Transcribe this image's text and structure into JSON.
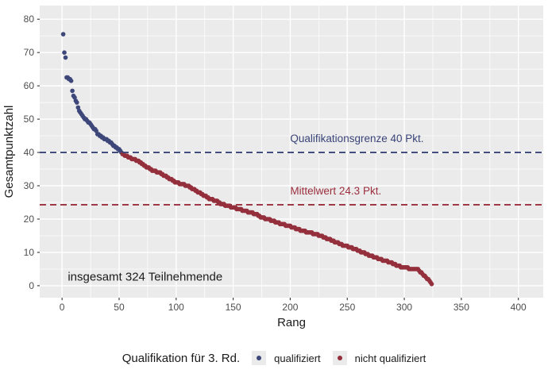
{
  "chart_data": {
    "type": "scatter",
    "title": "",
    "xlabel": "Rang",
    "ylabel": "Gesamtpunktzahl",
    "x_ticks": [
      0,
      50,
      100,
      150,
      200,
      250,
      300,
      350,
      400
    ],
    "y_ticks": [
      0,
      10,
      20,
      30,
      40,
      50,
      60,
      70,
      80
    ],
    "xlim": [
      -19.6,
      421.8
    ],
    "ylim": [
      -3.6,
      84.1
    ],
    "grid": {
      "major": true,
      "minor": true
    },
    "panel_color": "#ebebeb",
    "grid_color": "#ffffff",
    "axis_text_color": "#4d4d4d",
    "axis_title_color": "#1a1a1a",
    "tick_color": "#333333",
    "point_radius": 2.8,
    "n_points": 324,
    "threshold": 40,
    "mean": 24.3,
    "annotation": {
      "text": "insgesamt 324 Teilnehmende",
      "x": 5,
      "y": 1.5,
      "color": "#1a1a1a",
      "font_size": 15
    },
    "hlines": [
      {
        "y": 40,
        "label": "Qualifikationsgrenze 40 Pkt.",
        "color": "#3a4478",
        "label_x": 200
      },
      {
        "y": 24.3,
        "label": "Mittelwert 24.3 Pkt.",
        "color": "#9c2f3e",
        "label_x": 200
      }
    ],
    "series": [
      {
        "name": "qualifiziert",
        "color": "#3d4779",
        "condition": "score >= 40"
      },
      {
        "name": "nicht qualifiziert",
        "color": "#942f3c",
        "condition": "score < 40"
      }
    ],
    "points_rank_score_anchors": [
      [
        1,
        75.5
      ],
      [
        2,
        70
      ],
      [
        3,
        68.5
      ],
      [
        4,
        62.5
      ],
      [
        6,
        62
      ],
      [
        8,
        61.5
      ],
      [
        9,
        58.5
      ],
      [
        10,
        57
      ],
      [
        12,
        55.5
      ],
      [
        13,
        55
      ],
      [
        14,
        53.5
      ],
      [
        15,
        52.5
      ],
      [
        17,
        51.5
      ],
      [
        18,
        51
      ],
      [
        20,
        50
      ],
      [
        22,
        49.5
      ],
      [
        23,
        49
      ],
      [
        25,
        48.5
      ],
      [
        27,
        47.5
      ],
      [
        28,
        47
      ],
      [
        30,
        46.5
      ],
      [
        31,
        45.5
      ],
      [
        33,
        45
      ],
      [
        35,
        44.5
      ],
      [
        38,
        44
      ],
      [
        40,
        43.5
      ],
      [
        42,
        43
      ],
      [
        44,
        42.5
      ],
      [
        45,
        42
      ],
      [
        47,
        41.5
      ],
      [
        49,
        41
      ],
      [
        51,
        40.5
      ],
      [
        52,
        40
      ],
      [
        53,
        39.5
      ],
      [
        56,
        39
      ],
      [
        58,
        38.5
      ],
      [
        62,
        38
      ],
      [
        66,
        37.5
      ],
      [
        70,
        36.5
      ],
      [
        75,
        35.5
      ],
      [
        80,
        34.5
      ],
      [
        85,
        34
      ],
      [
        90,
        33
      ],
      [
        95,
        32
      ],
      [
        100,
        31
      ],
      [
        105,
        30.5
      ],
      [
        110,
        30
      ],
      [
        115,
        29
      ],
      [
        120,
        28
      ],
      [
        125,
        27
      ],
      [
        130,
        26
      ],
      [
        135,
        25.5
      ],
      [
        140,
        24.5
      ],
      [
        145,
        24
      ],
      [
        150,
        23.5
      ],
      [
        155,
        23
      ],
      [
        160,
        22.5
      ],
      [
        165,
        22
      ],
      [
        170,
        21.5
      ],
      [
        175,
        20.5
      ],
      [
        182,
        19.8
      ],
      [
        190,
        18.8
      ],
      [
        198,
        18
      ],
      [
        206,
        17
      ],
      [
        214,
        16.2
      ],
      [
        222,
        15.5
      ],
      [
        230,
        14.5
      ],
      [
        238,
        13.3
      ],
      [
        246,
        12.2
      ],
      [
        254,
        11.3
      ],
      [
        262,
        10.2
      ],
      [
        270,
        9
      ],
      [
        278,
        8
      ],
      [
        286,
        7.2
      ],
      [
        294,
        6
      ],
      [
        302,
        5.3
      ],
      [
        308,
        5
      ],
      [
        312,
        4.8
      ],
      [
        316,
        3.6
      ],
      [
        320,
        2
      ],
      [
        322,
        1.5
      ],
      [
        324,
        0.5
      ]
    ]
  },
  "legend": {
    "title": "Qualifikation für 3. Rd.",
    "key_fill": "#ebebeb",
    "items": [
      {
        "label": "qualifiziert",
        "color": "#3d4779"
      },
      {
        "label": "nicht qualifiziert",
        "color": "#942f3c"
      }
    ]
  }
}
